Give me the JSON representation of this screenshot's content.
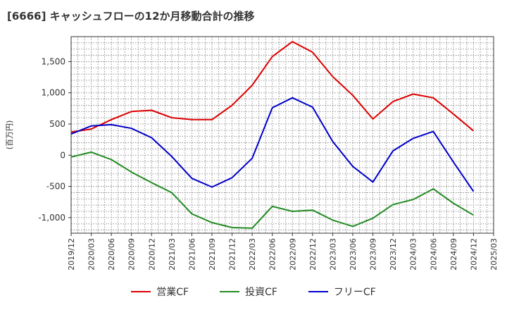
{
  "chart_data": {
    "type": "line",
    "title": "[6666]  キャッシュフローの12か月移動合計の推移",
    "ylabel": "(百万円)",
    "xlabel": "",
    "ylim": [
      -1250,
      1900
    ],
    "yticks": [
      -1000,
      -500,
      0,
      500,
      1000,
      1500
    ],
    "ytick_labels": [
      "-1,000",
      "-500",
      "0",
      "500",
      "1,000",
      "1,500"
    ],
    "xtick_labels": [
      "2019/12",
      "2020/03",
      "2020/06",
      "2020/09",
      "2020/12",
      "2021/03",
      "2021/06",
      "2021/09",
      "2021/12",
      "2022/03",
      "2022/06",
      "2022/09",
      "2022/12",
      "2023/03",
      "2023/06",
      "2023/09",
      "2023/12",
      "2024/03",
      "2024/06",
      "2024/09",
      "2024/12",
      "2025/03"
    ],
    "categories": [
      "2019/12",
      "2020/03",
      "2020/06",
      "2020/09",
      "2020/12",
      "2021/03",
      "2021/06",
      "2021/09",
      "2021/12",
      "2022/03",
      "2022/06",
      "2022/09",
      "2022/12",
      "2023/03",
      "2023/06",
      "2023/09",
      "2023/12",
      "2024/03",
      "2024/06",
      "2024/09",
      "2024/12"
    ],
    "grid": true,
    "legend_position": "bottom",
    "series": [
      {
        "name": "営業CF",
        "color": "#dd0000",
        "values": [
          370,
          420,
          570,
          700,
          720,
          600,
          570,
          570,
          800,
          1120,
          1580,
          1820,
          1650,
          1260,
          960,
          580,
          860,
          980,
          920,
          660,
          390
        ]
      },
      {
        "name": "投資CF",
        "color": "#228b22",
        "values": [
          -30,
          50,
          -70,
          -270,
          -440,
          -600,
          -940,
          -1080,
          -1160,
          -1170,
          -820,
          -900,
          -880,
          -1040,
          -1140,
          -1010,
          -790,
          -710,
          -540,
          -770,
          -960
        ]
      },
      {
        "name": "フリーCF",
        "color": "#0000cc",
        "values": [
          340,
          470,
          490,
          430,
          280,
          -20,
          -370,
          -510,
          -360,
          -50,
          760,
          920,
          770,
          220,
          -180,
          -430,
          70,
          270,
          380,
          -110,
          -580
        ]
      }
    ]
  }
}
